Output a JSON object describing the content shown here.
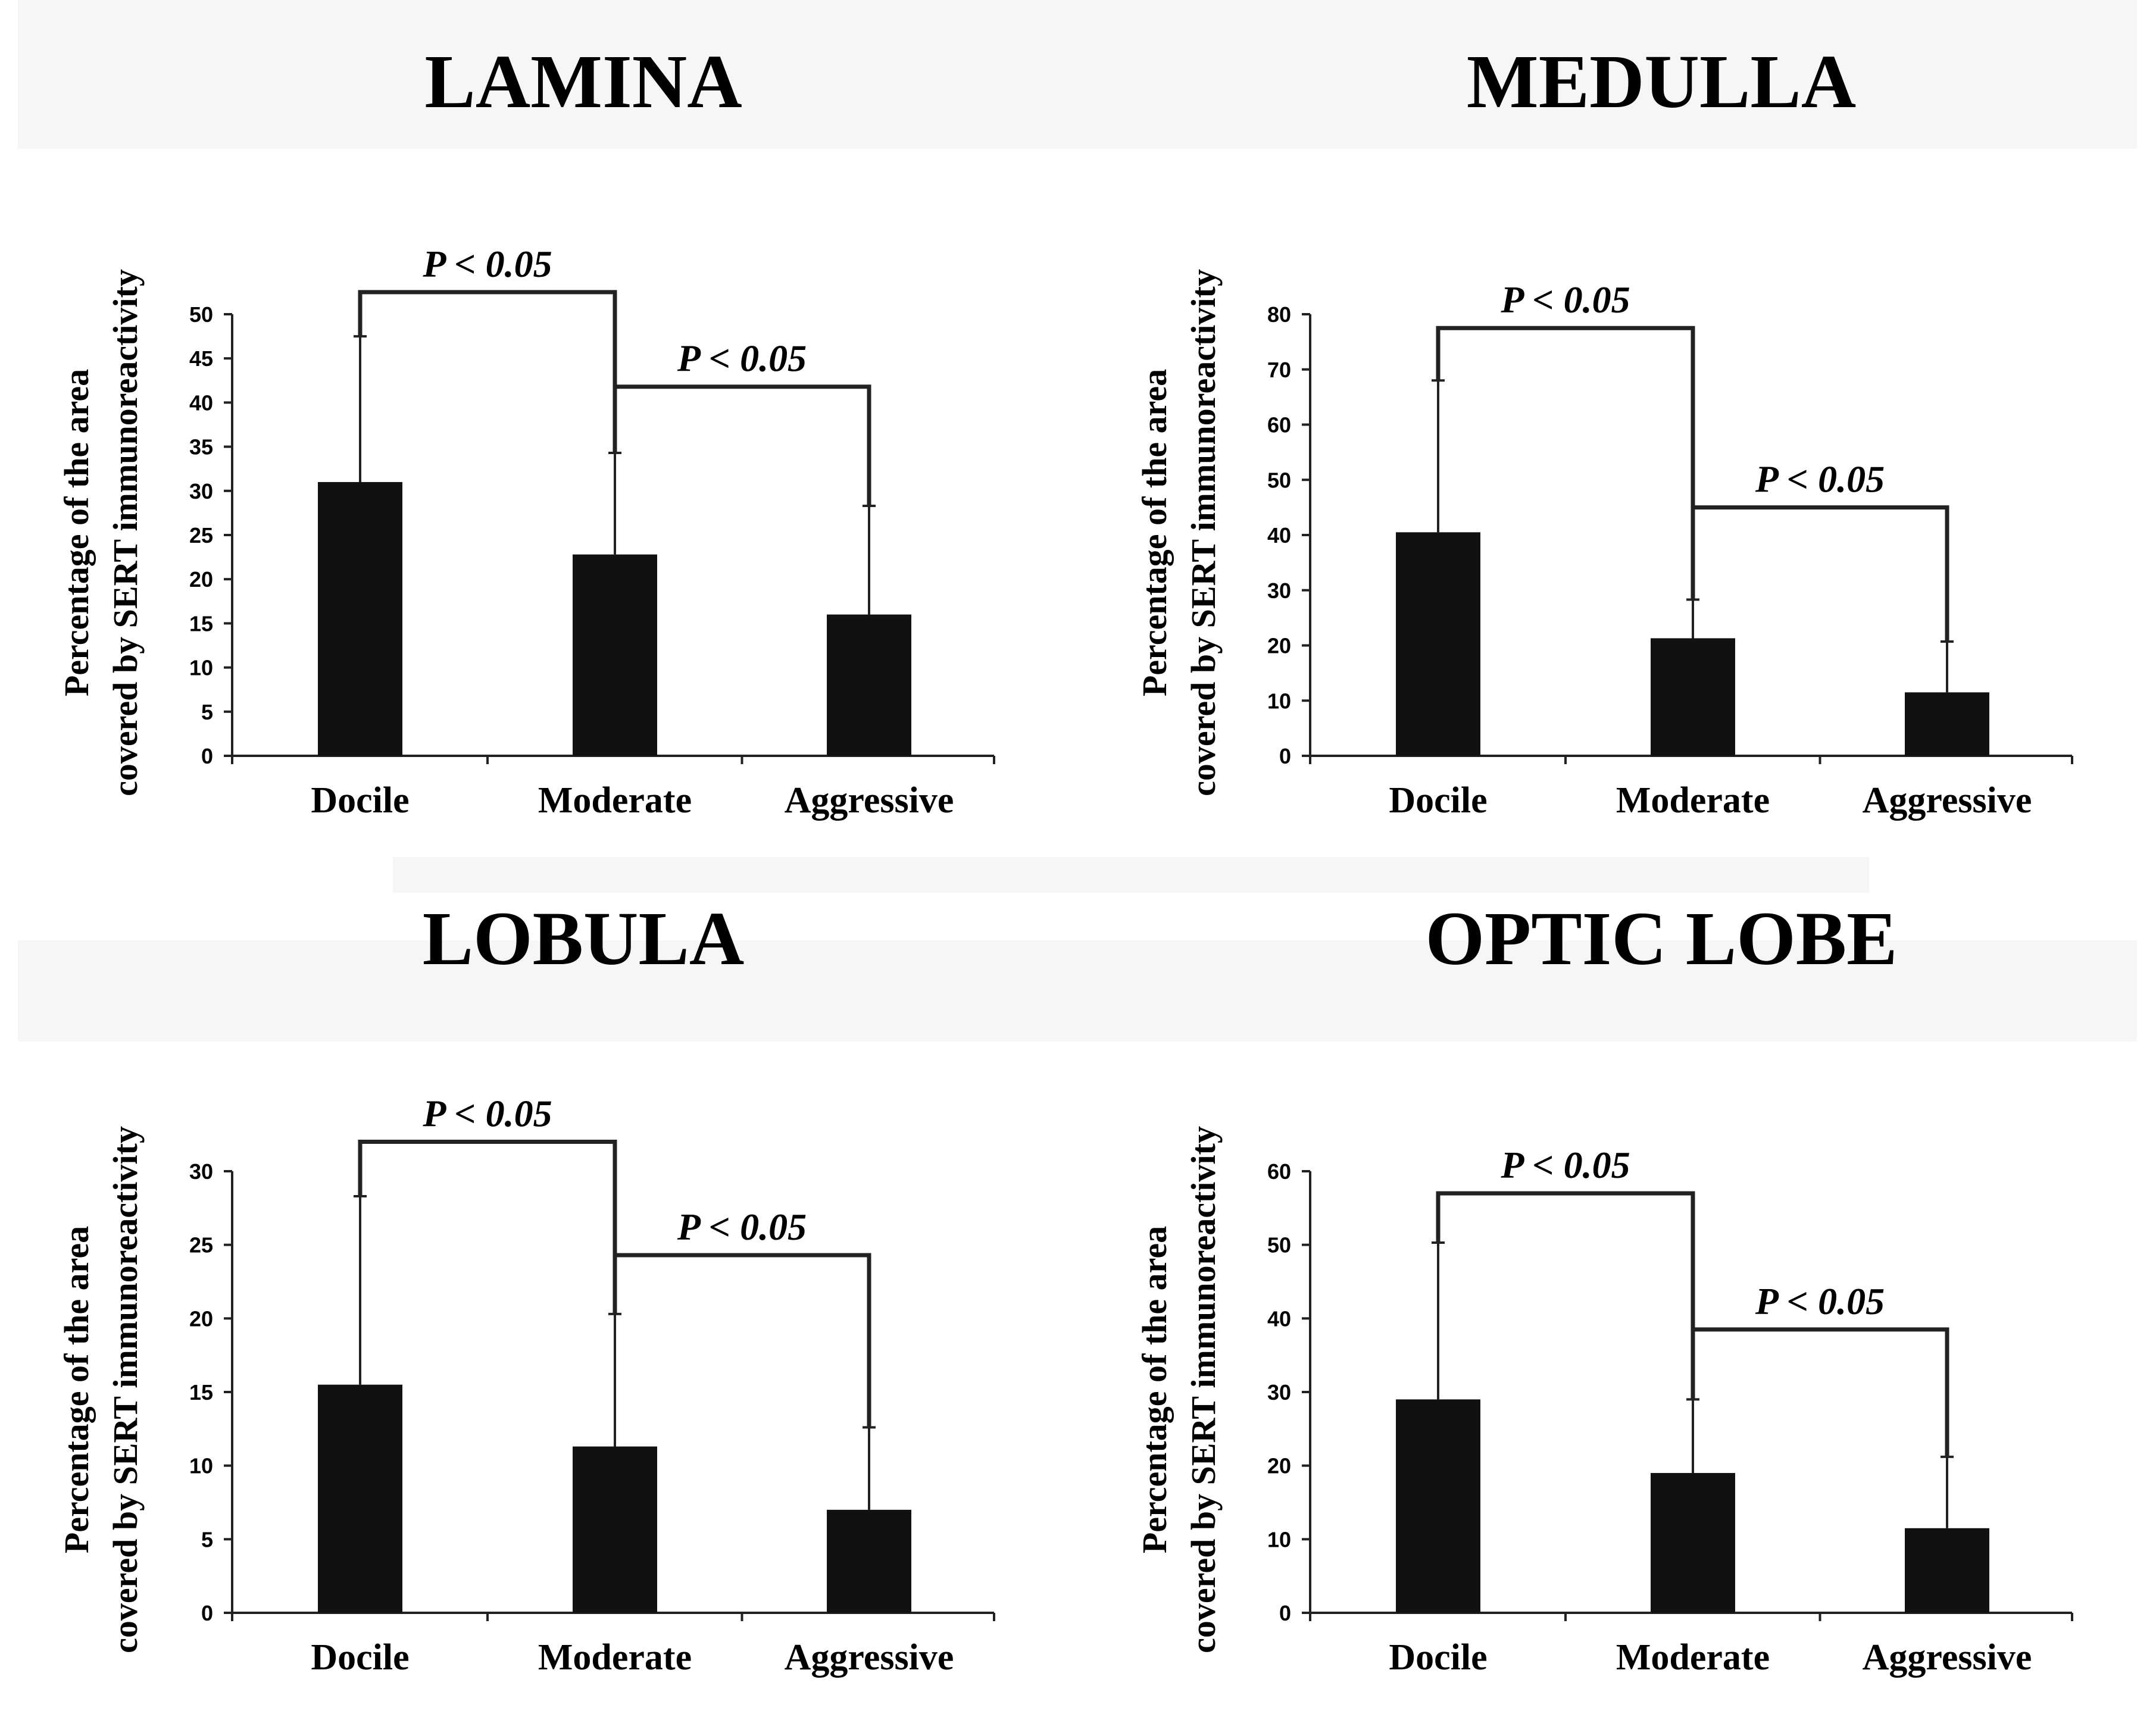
{
  "figure": {
    "colors": {
      "bar": "#111111",
      "axis": "#222222",
      "text": "#000000"
    }
  },
  "chart_data": [
    {
      "type": "bar",
      "title": "LAMINA",
      "ylabel_line1": "Percentage of the area",
      "ylabel_line2": "covered by SERT immunoreactivity",
      "categories": [
        "Docile",
        "Moderate",
        "Aggressive"
      ],
      "values": [
        31,
        22.8,
        16
      ],
      "errors": [
        16.5,
        11.5,
        12.3
      ],
      "ylim": [
        0,
        50
      ],
      "yticks": [
        0,
        5,
        10,
        15,
        20,
        25,
        30,
        35,
        40,
        45,
        50
      ],
      "yticks_labels": [
        "0",
        "5",
        "10",
        "15",
        "20",
        "25",
        "30",
        "35",
        "40",
        "45",
        "50"
      ],
      "comparisons": [
        {
          "from": 0,
          "to": 1,
          "level": 52.5,
          "label": "P < 0.05"
        },
        {
          "from": 1,
          "to": 2,
          "level": 41.8,
          "label": "P < 0.05"
        }
      ]
    },
    {
      "type": "bar",
      "title": "MEDULLA",
      "ylabel_line1": "Percentage of the area",
      "ylabel_line2": "covered by SERT immunoreactivity",
      "categories": [
        "Docile",
        "Moderate",
        "Aggressive"
      ],
      "values": [
        40.5,
        21.3,
        11.5
      ],
      "errors": [
        27.5,
        7,
        9.2
      ],
      "ylim": [
        0,
        80
      ],
      "yticks": [
        0,
        10,
        20,
        30,
        40,
        50,
        60,
        70,
        80
      ],
      "yticks_labels": [
        "0",
        "10",
        "20",
        "30",
        "40",
        "50",
        "60",
        "70",
        "80"
      ],
      "comparisons": [
        {
          "from": 0,
          "to": 1,
          "level": 77.5,
          "label": "P < 0.05"
        },
        {
          "from": 1,
          "to": 2,
          "level": 45,
          "label": "P < 0.05"
        }
      ]
    },
    {
      "type": "bar",
      "title": "LOBULA",
      "ylabel_line1": "Percentage of the area",
      "ylabel_line2": "covered by SERT immunoreactivity",
      "categories": [
        "Docile",
        "Moderate",
        "Aggressive"
      ],
      "values": [
        15.5,
        11.3,
        7
      ],
      "errors": [
        12.8,
        9,
        5.6
      ],
      "ylim": [
        0,
        30
      ],
      "yticks": [
        0,
        5,
        10,
        15,
        20,
        25,
        30
      ],
      "yticks_labels": [
        "0",
        "5",
        "10",
        "15",
        "20",
        "25",
        "30"
      ],
      "comparisons": [
        {
          "from": 0,
          "to": 1,
          "level": 32,
          "label": "P < 0.05"
        },
        {
          "from": 1,
          "to": 2,
          "level": 24.3,
          "label": "P < 0.05"
        }
      ]
    },
    {
      "type": "bar",
      "title": "OPTIC LOBE",
      "ylabel_line1": "Percentage of the area",
      "ylabel_line2": "covered by SERT immunoreactivity",
      "categories": [
        "Docile",
        "Moderate",
        "Aggressive"
      ],
      "values": [
        29,
        19,
        11.5
      ],
      "errors": [
        21.3,
        10,
        9.7
      ],
      "ylim": [
        0,
        60
      ],
      "yticks": [
        0,
        10,
        20,
        30,
        40,
        50,
        60
      ],
      "yticks_labels": [
        "0",
        "10",
        "20",
        "30",
        "40",
        "50",
        "60"
      ],
      "comparisons": [
        {
          "from": 0,
          "to": 1,
          "level": 57,
          "label": "P < 0.05"
        },
        {
          "from": 1,
          "to": 2,
          "level": 38.5,
          "label": "P < 0.05"
        }
      ]
    }
  ]
}
